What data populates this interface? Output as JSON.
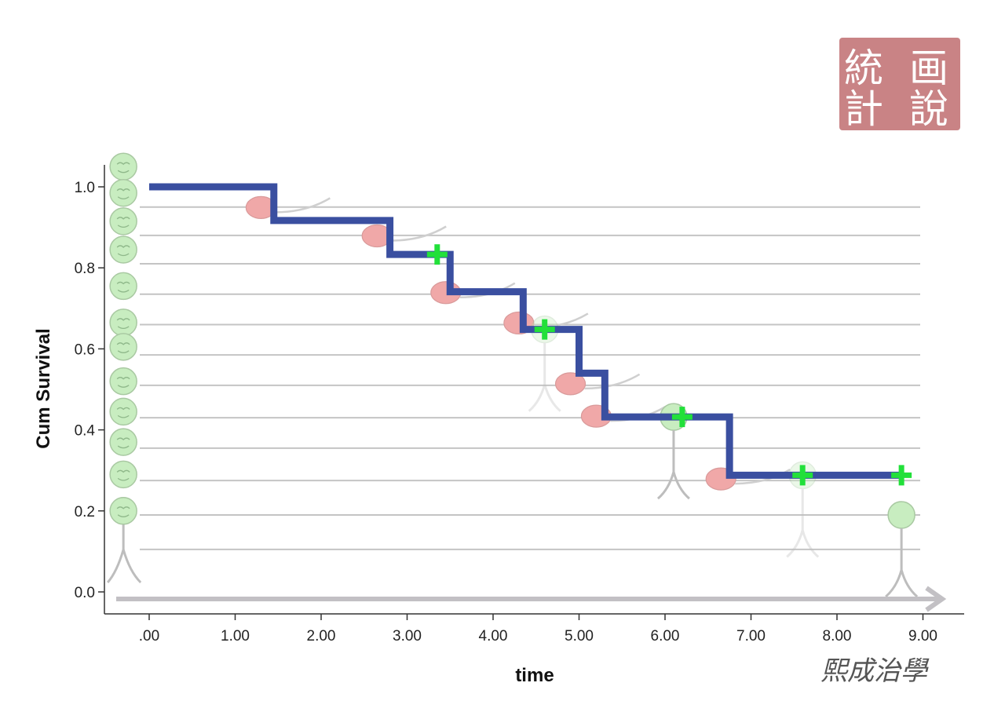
{
  "chart_data": {
    "type": "line",
    "subtype": "kaplan-meier-step",
    "title": "",
    "xlabel": "time",
    "ylabel": "Cum Survival",
    "xlim": [
      -0.5,
      9.5
    ],
    "ylim": [
      -0.05,
      1.06
    ],
    "x_ticks": [
      0,
      1,
      2,
      3,
      4,
      5,
      6,
      7,
      8,
      9
    ],
    "x_tick_labels": [
      ".00",
      "1.00",
      "2.00",
      "3.00",
      "4.00",
      "5.00",
      "6.00",
      "7.00",
      "8.00",
      "9.00"
    ],
    "y_ticks": [
      0.0,
      0.2,
      0.4,
      0.6,
      0.8,
      1.0
    ],
    "y_tick_labels": [
      "0.0",
      "0.2",
      "0.4",
      "0.6",
      "0.8",
      "1.0"
    ],
    "grid": false,
    "legend": "none",
    "series": [
      {
        "points": [
          {
            "x": 0.0,
            "y": 1.0
          },
          {
            "x": 1.45,
            "y": 0.917
          },
          {
            "x": 2.8,
            "y": 0.833
          },
          {
            "x": 3.5,
            "y": 0.741
          },
          {
            "x": 4.35,
            "y": 0.648
          },
          {
            "x": 5.0,
            "y": 0.54
          },
          {
            "x": 5.3,
            "y": 0.432
          },
          {
            "x": 6.75,
            "y": 0.288
          }
        ],
        "end_x": 8.75,
        "color": "#3a4fa0"
      }
    ],
    "censored": [
      {
        "x": 3.35,
        "y": 0.833
      },
      {
        "x": 4.6,
        "y": 0.648
      },
      {
        "x": 6.2,
        "y": 0.432
      },
      {
        "x": 7.6,
        "y": 0.288
      },
      {
        "x": 8.75,
        "y": 0.288
      }
    ],
    "censor_color": "#22e03a",
    "event_marker_color": "#f0a8a8",
    "figure_color": "#bdbdbd",
    "head_color": "#c8edc0",
    "subject_lines_y": [
      0.95,
      0.88,
      0.81,
      0.735,
      0.66,
      0.585,
      0.51,
      0.43,
      0.355,
      0.275,
      0.19,
      0.105
    ],
    "subject_stack_x": -0.3,
    "subject_heads_y": [
      1.05,
      0.985,
      0.915,
      0.845,
      0.755,
      0.665,
      0.605,
      0.52,
      0.445,
      0.37,
      0.29,
      0.2
    ],
    "decor_figures": [
      {
        "x": 4.6,
        "y": 0.648,
        "faded": true
      },
      {
        "x": 6.1,
        "y": 0.432,
        "faded": false
      },
      {
        "x": 7.6,
        "y": 0.288,
        "faded": true
      },
      {
        "x": 8.75,
        "y": 0.19,
        "faded": false
      }
    ],
    "event_blobs": [
      {
        "x": 1.3,
        "y": 0.945
      },
      {
        "x": 2.65,
        "y": 0.875
      },
      {
        "x": 3.45,
        "y": 0.735
      },
      {
        "x": 4.3,
        "y": 0.66
      },
      {
        "x": 4.9,
        "y": 0.51
      },
      {
        "x": 5.2,
        "y": 0.43
      },
      {
        "x": 6.65,
        "y": 0.275
      }
    ]
  },
  "seal": {
    "chars": [
      "統",
      "画",
      "計",
      "說"
    ],
    "color": "#c98385"
  },
  "signature": {
    "text": "熙成治學"
  }
}
